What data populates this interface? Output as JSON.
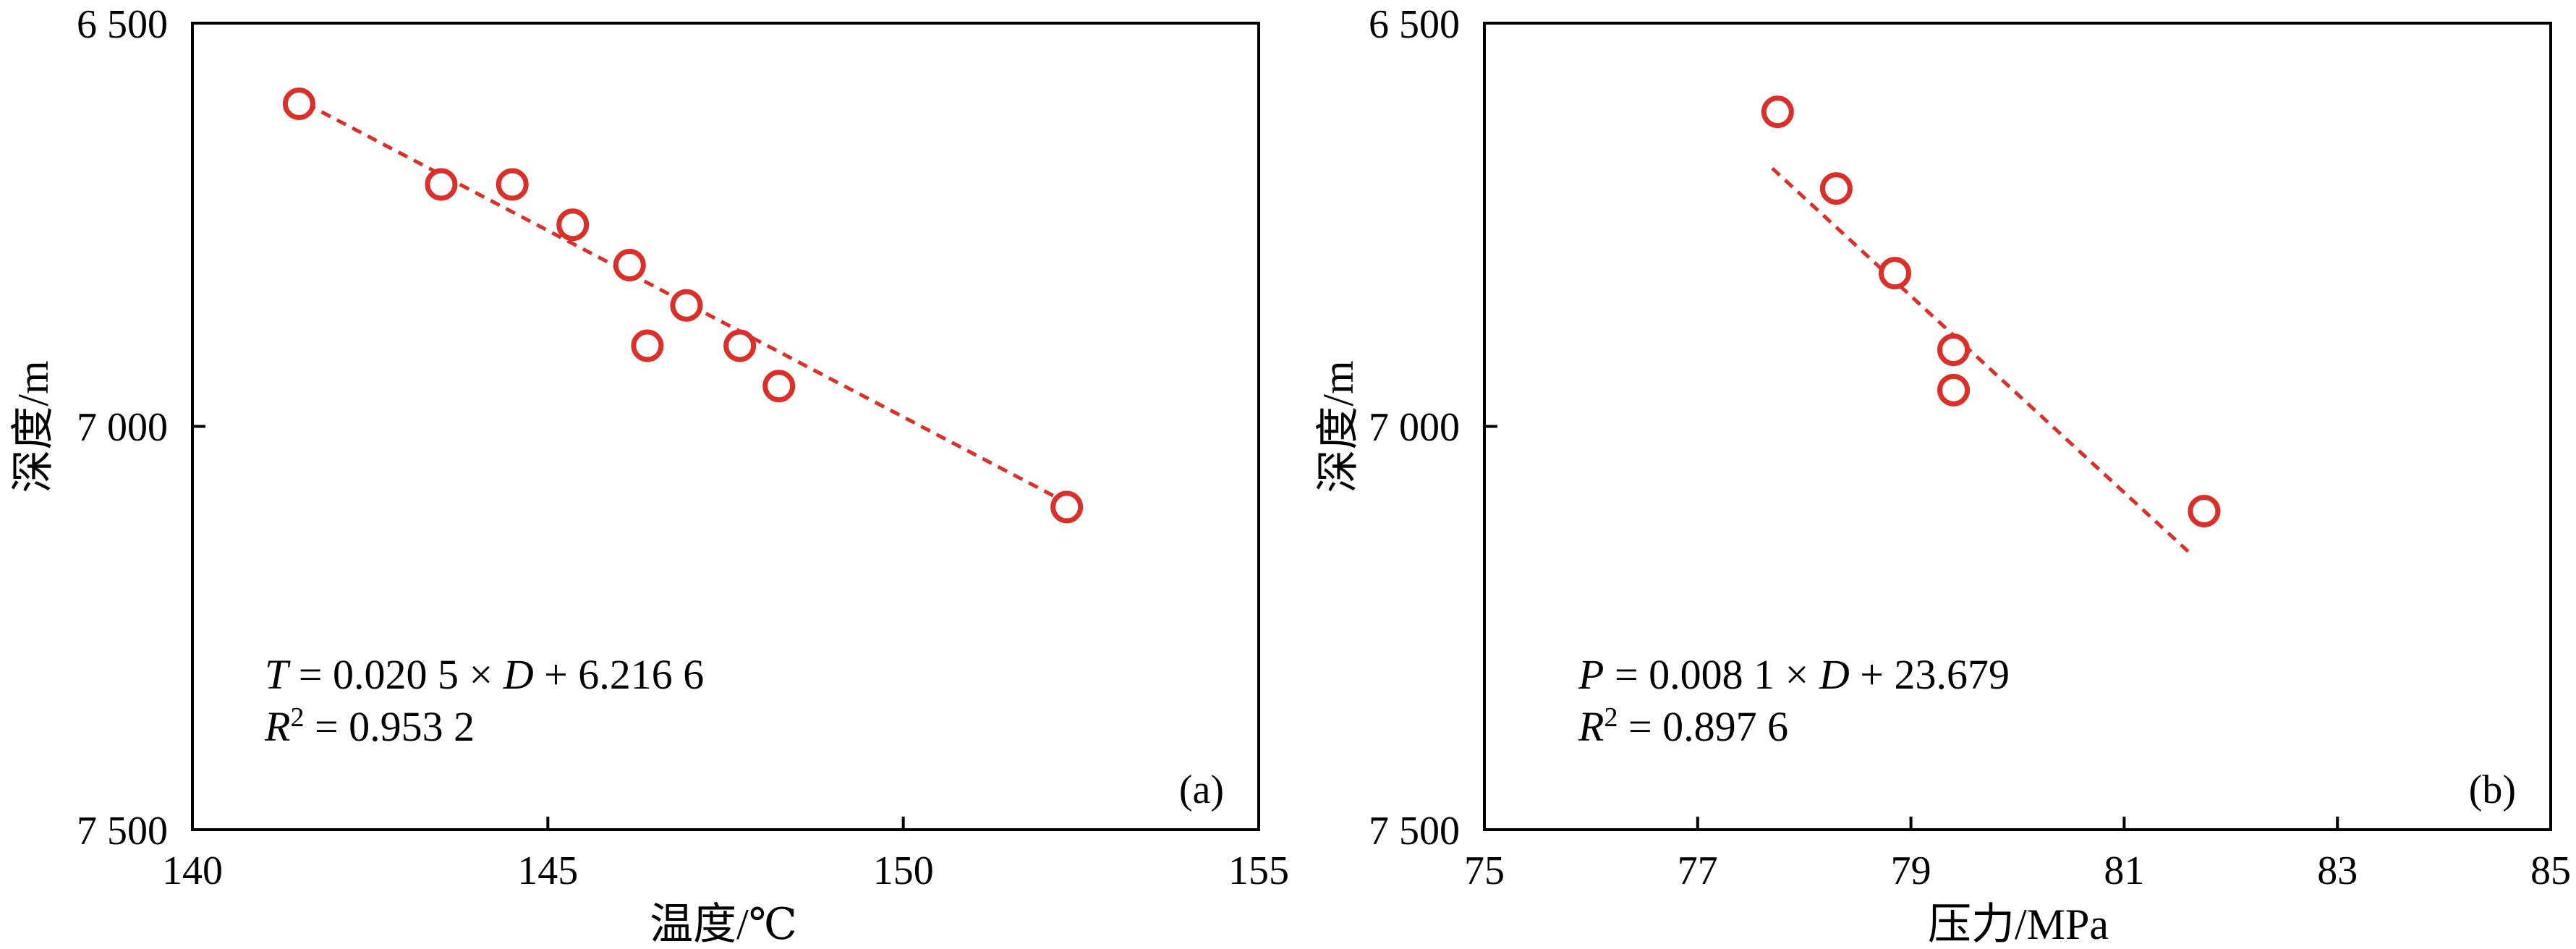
{
  "chart_data": [
    {
      "type": "scatter",
      "panel_label": "(a)",
      "xlabel": "温度/℃",
      "ylabel": "深度/m",
      "xlim": [
        140,
        155
      ],
      "ylim": [
        6500,
        7500
      ],
      "y_inverted": true,
      "x_ticks": [
        "140",
        "145",
        "150",
        "155"
      ],
      "x_tick_values": [
        140,
        145,
        150,
        155
      ],
      "y_ticks": [
        "6 500",
        "7 000",
        "7 500"
      ],
      "y_tick_values": [
        6500,
        7000,
        7500
      ],
      "grid": false,
      "series": [
        {
          "marker": "open-circle",
          "color": "#d9302a",
          "points": [
            {
              "x": 141.5,
              "y": 6600
            },
            {
              "x": 143.5,
              "y": 6700
            },
            {
              "x": 144.5,
              "y": 6700
            },
            {
              "x": 145.35,
              "y": 6750
            },
            {
              "x": 146.15,
              "y": 6800
            },
            {
              "x": 146.95,
              "y": 6850
            },
            {
              "x": 146.4,
              "y": 6900
            },
            {
              "x": 147.7,
              "y": 6900
            },
            {
              "x": 148.25,
              "y": 6950
            },
            {
              "x": 152.3,
              "y": 7100
            }
          ]
        }
      ],
      "fit_line": {
        "style": "dashed",
        "color": "#d9302a",
        "from": {
          "x": 141.6,
          "y": 6600
        },
        "to": {
          "x": 152.2,
          "y": 7090
        }
      },
      "equation": {
        "var": "T",
        "rhs_a": " = 0.020 5 × ",
        "x_var": "D",
        "rhs_b": " + 6.216 6",
        "r2_var": "R",
        "r2_sup": "2",
        "r2_rhs": " = 0.953 2"
      }
    },
    {
      "type": "scatter",
      "panel_label": "(b)",
      "xlabel": "压力/MPa",
      "ylabel": "深度/m",
      "xlim": [
        75,
        85
      ],
      "ylim": [
        6500,
        7500
      ],
      "y_inverted": true,
      "x_ticks": [
        "75",
        "77",
        "79",
        "81",
        "83",
        "85"
      ],
      "x_tick_values": [
        75,
        77,
        79,
        81,
        83,
        85
      ],
      "y_ticks": [
        "6 500",
        "7 000",
        "7 500"
      ],
      "y_tick_values": [
        6500,
        7000,
        7500
      ],
      "grid": false,
      "series": [
        {
          "marker": "open-circle",
          "color": "#d9302a",
          "points": [
            {
              "x": 77.75,
              "y": 6610
            },
            {
              "x": 78.3,
              "y": 6705
            },
            {
              "x": 78.85,
              "y": 6810
            },
            {
              "x": 79.4,
              "y": 6905
            },
            {
              "x": 79.4,
              "y": 6955
            },
            {
              "x": 81.75,
              "y": 7105
            }
          ]
        }
      ],
      "fit_line": {
        "style": "dashed",
        "color": "#d9302a",
        "from": {
          "x": 77.7,
          "y": 6680
        },
        "to": {
          "x": 81.6,
          "y": 7155
        }
      },
      "equation": {
        "var": "P",
        "rhs_a": " = 0.008 1 × ",
        "x_var": "D",
        "rhs_b": " + 23.679",
        "r2_var": "R",
        "r2_sup": "2",
        "r2_rhs": " = 0.897 6"
      }
    }
  ]
}
